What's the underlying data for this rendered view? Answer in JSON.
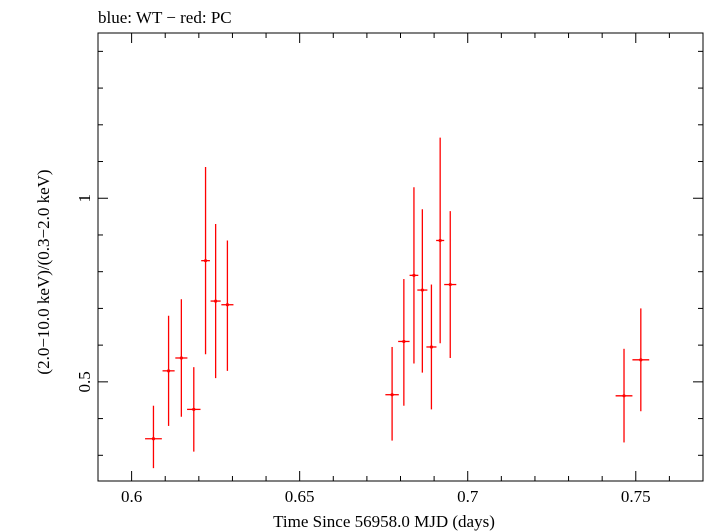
{
  "chart_data": {
    "type": "scatter",
    "title": "blue: WT − red: PC",
    "xlabel": "Time Since 56958.0 MJD (days)",
    "ylabel": "(2.0−10.0 keV)/(0.3−2.0 keV)",
    "xlim": [
      0.59,
      0.77
    ],
    "ylim": [
      0.23,
      1.45
    ],
    "xticks": [
      {
        "value": 0.6,
        "label": "0.6"
      },
      {
        "value": 0.65,
        "label": "0.65"
      },
      {
        "value": 0.7,
        "label": "0.7"
      },
      {
        "value": 0.75,
        "label": "0.75"
      }
    ],
    "yticks": [
      {
        "value": 0.5,
        "label": "0.5"
      },
      {
        "value": 1.0,
        "label": "1"
      }
    ],
    "y_minor_ticks": [
      0.3,
      0.4,
      0.6,
      0.7,
      0.8,
      0.9,
      1.1,
      1.2,
      1.3,
      1.4
    ],
    "x_minor_ticks": [
      0.61,
      0.62,
      0.63,
      0.64,
      0.66,
      0.67,
      0.68,
      0.69,
      0.71,
      0.72,
      0.73,
      0.74,
      0.76
    ],
    "series": [
      {
        "color": "#ff0000",
        "points": [
          {
            "x": 0.6065,
            "xerr": 0.0025,
            "y": 0.345,
            "ylo": 0.265,
            "yhi": 0.435
          },
          {
            "x": 0.611,
            "xerr": 0.0018,
            "y": 0.53,
            "ylo": 0.38,
            "yhi": 0.68
          },
          {
            "x": 0.6148,
            "xerr": 0.0018,
            "y": 0.565,
            "ylo": 0.405,
            "yhi": 0.725
          },
          {
            "x": 0.6185,
            "xerr": 0.002,
            "y": 0.425,
            "ylo": 0.31,
            "yhi": 0.54
          },
          {
            "x": 0.622,
            "xerr": 0.0013,
            "y": 0.83,
            "ylo": 0.575,
            "yhi": 1.085
          },
          {
            "x": 0.625,
            "xerr": 0.0015,
            "y": 0.72,
            "ylo": 0.51,
            "yhi": 0.93
          },
          {
            "x": 0.6285,
            "xerr": 0.0018,
            "y": 0.71,
            "ylo": 0.53,
            "yhi": 0.885
          },
          {
            "x": 0.6775,
            "xerr": 0.002,
            "y": 0.465,
            "ylo": 0.34,
            "yhi": 0.595
          },
          {
            "x": 0.681,
            "xerr": 0.0017,
            "y": 0.61,
            "ylo": 0.435,
            "yhi": 0.78
          },
          {
            "x": 0.684,
            "xerr": 0.0013,
            "y": 0.79,
            "ylo": 0.55,
            "yhi": 1.03
          },
          {
            "x": 0.6865,
            "xerr": 0.0015,
            "y": 0.75,
            "ylo": 0.525,
            "yhi": 0.97
          },
          {
            "x": 0.6892,
            "xerr": 0.0015,
            "y": 0.595,
            "ylo": 0.425,
            "yhi": 0.765
          },
          {
            "x": 0.6918,
            "xerr": 0.0012,
            "y": 0.885,
            "ylo": 0.605,
            "yhi": 1.165
          },
          {
            "x": 0.6948,
            "xerr": 0.0018,
            "y": 0.765,
            "ylo": 0.565,
            "yhi": 0.965
          },
          {
            "x": 0.7465,
            "xerr": 0.0025,
            "y": 0.462,
            "ylo": 0.335,
            "yhi": 0.59
          },
          {
            "x": 0.7515,
            "xerr": 0.0025,
            "y": 0.56,
            "ylo": 0.42,
            "yhi": 0.7
          }
        ]
      }
    ]
  }
}
